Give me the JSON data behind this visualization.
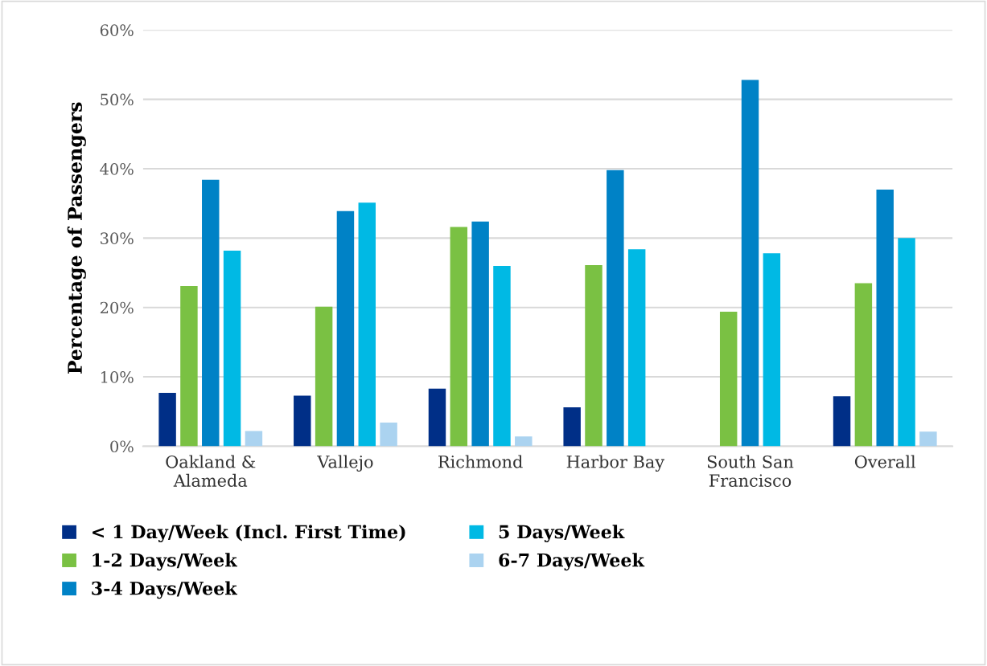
{
  "chart_data": {
    "type": "bar",
    "ylabel": "Percentage of Passengers",
    "categories": [
      "Oakland &\nAlameda",
      "Vallejo",
      "Richmond",
      "Harbor Bay",
      "South San\nFrancisco",
      "Overall"
    ],
    "series": [
      {
        "name": "< 1 Day/Week (Incl. First Time)",
        "color": "#002f87",
        "values": [
          7.7,
          7.3,
          8.3,
          5.6,
          null,
          7.2
        ]
      },
      {
        "name": "1-2 Days/Week",
        "color": "#7ac143",
        "values": [
          23.1,
          20.1,
          31.6,
          26.1,
          19.4,
          23.5
        ]
      },
      {
        "name": "3-4 Days/Week",
        "color": "#0082c6",
        "values": [
          38.4,
          33.9,
          32.4,
          39.8,
          52.8,
          37.0
        ]
      },
      {
        "name": "5 Days/Week",
        "color": "#00b9e4",
        "values": [
          28.2,
          35.1,
          26.0,
          28.4,
          27.8,
          30.0
        ]
      },
      {
        "name": "6-7 Days/Week",
        "color": "#abd3f0",
        "values": [
          2.2,
          3.4,
          1.4,
          null,
          null,
          2.1
        ]
      }
    ],
    "ylim": [
      0,
      60
    ],
    "yticks": [
      {
        "value": 0,
        "label": "0%"
      },
      {
        "value": 10,
        "label": "10%"
      },
      {
        "value": 20,
        "label": "20%"
      },
      {
        "value": 30,
        "label": "30%"
      },
      {
        "value": 40,
        "label": "40%"
      },
      {
        "value": 50,
        "label": "50%"
      },
      {
        "value": 60,
        "label": "60%"
      }
    ],
    "grid": "y",
    "legend": "bottom"
  }
}
